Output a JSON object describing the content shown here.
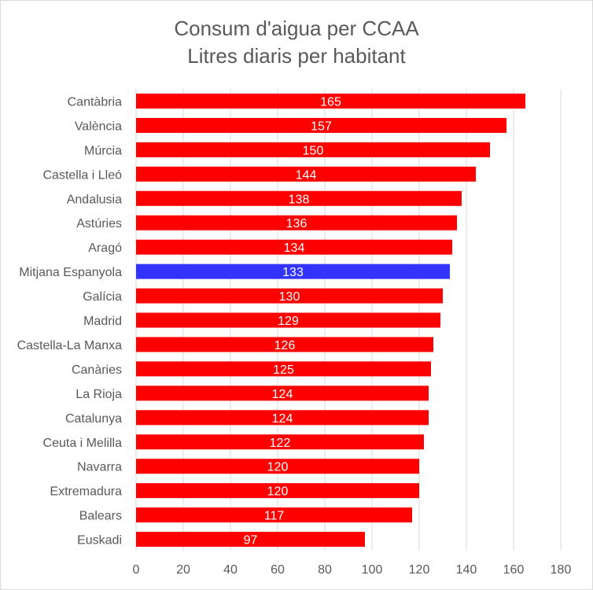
{
  "chart_data": {
    "type": "bar",
    "orientation": "horizontal",
    "title": "Consum d'aigua per CCAA",
    "subtitle": "Litres diaris per habitant",
    "categories": [
      "Cantàbria",
      "València",
      "Múrcia",
      "Castella i Lleó",
      "Andalusia",
      "Astúries",
      "Aragó",
      "Mitjana Espanyola",
      "Galícia",
      "Madrid",
      "Castella-La Manxa",
      "Canàries",
      "La Rioja",
      "Catalunya",
      "Ceuta i Melilla",
      "Navarra",
      "Extremadura",
      "Balears",
      "Euskadi"
    ],
    "values": [
      165,
      157,
      150,
      144,
      138,
      136,
      134,
      133,
      130,
      129,
      126,
      125,
      124,
      124,
      122,
      120,
      120,
      117,
      97
    ],
    "highlight_category": "Mitjana Espanyola",
    "xlim": [
      0,
      180
    ],
    "x_ticks": [
      0,
      20,
      40,
      60,
      80,
      100,
      120,
      140,
      160,
      180
    ],
    "grid": "vertical",
    "legend": "none",
    "xlabel": "",
    "ylabel": "",
    "colors": {
      "bar": "#ff0000",
      "highlight_bar": "#3333ff",
      "data_label": "#ffffff",
      "axis_text": "#595959",
      "gridline": "#d9d9d9"
    }
  }
}
